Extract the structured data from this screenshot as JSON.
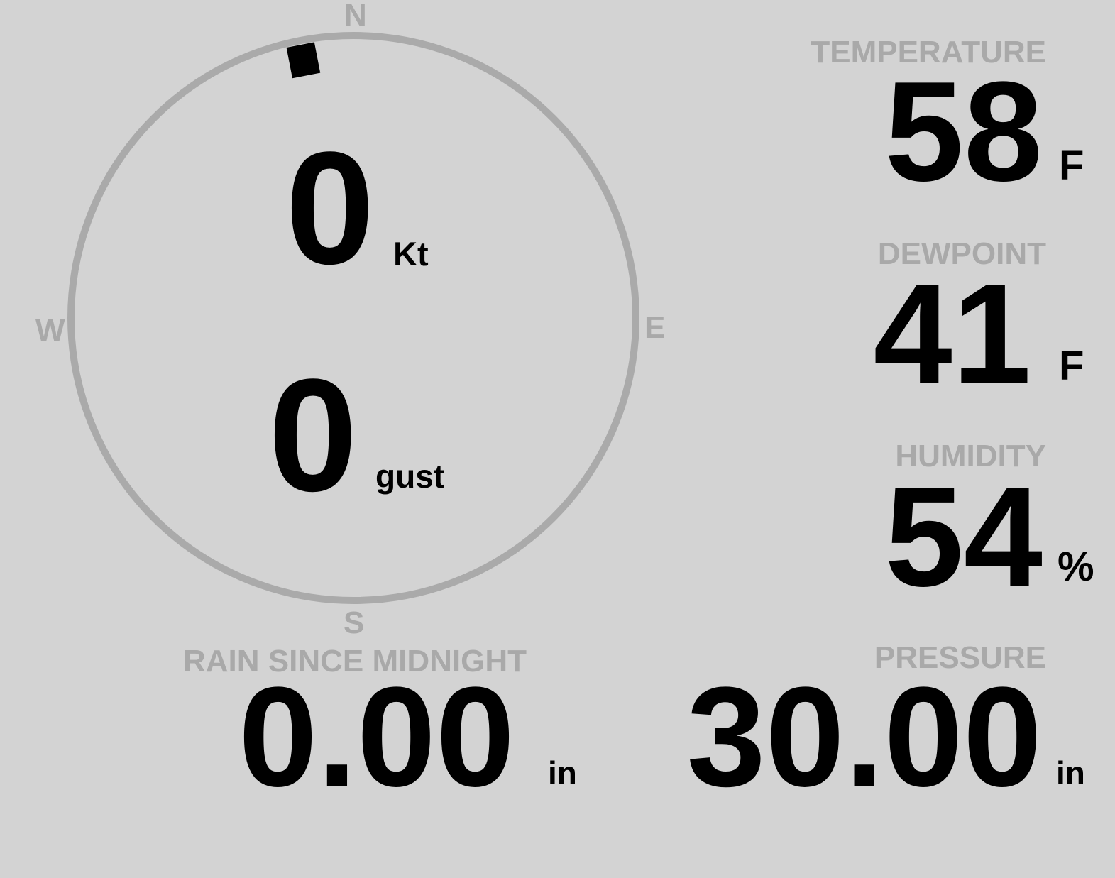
{
  "wind": {
    "speed": "0",
    "speed_unit": "Kt",
    "gust": "0",
    "gust_unit": "gust",
    "direction_deg": 349,
    "compass": {
      "n": "N",
      "e": "E",
      "s": "S",
      "w": "W"
    },
    "ring_color": "#aaaaaa",
    "marker_color": "#000000"
  },
  "temperature": {
    "label": "TEMPERATURE",
    "value": "58",
    "unit": "F"
  },
  "dewpoint": {
    "label": "DEWPOINT",
    "value": "41",
    "unit": "F"
  },
  "humidity": {
    "label": "HUMIDITY",
    "value": "54",
    "unit": "%"
  },
  "rain": {
    "label": "RAIN SINCE MIDNIGHT",
    "value": "0.00",
    "unit": "in"
  },
  "pressure": {
    "label": "PRESSURE",
    "value": "30.00",
    "unit": "in"
  },
  "colors": {
    "background": "#d3d3d3",
    "label": "#a9a9a9",
    "value": "#000000"
  }
}
